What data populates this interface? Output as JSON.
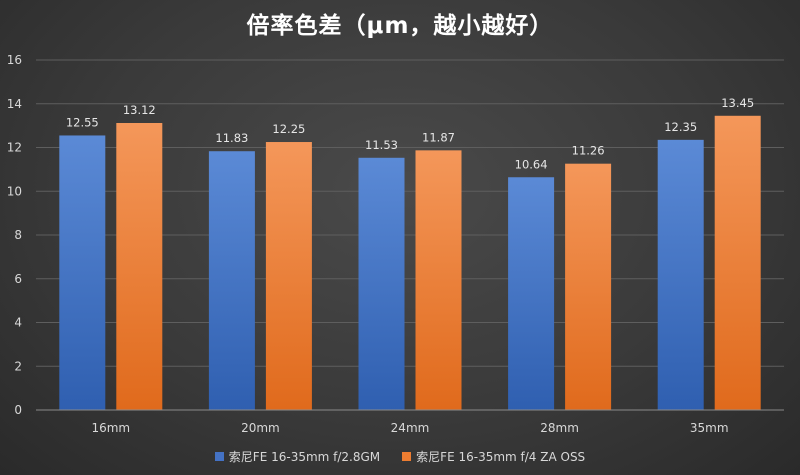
{
  "chart_data": {
    "type": "bar",
    "title": "倍率色差（μm，越小越好）",
    "categories": [
      "16mm",
      "20mm",
      "24mm",
      "28mm",
      "35mm"
    ],
    "ylim": [
      0,
      16
    ],
    "yticks": [
      "0",
      "2",
      "4",
      "6",
      "8",
      "10",
      "12",
      "14",
      "16"
    ],
    "grid": true,
    "legend_position": "bottom",
    "series": [
      {
        "name": "索尼FE 16-35mm f/2.8GM",
        "color": "#4472c4",
        "values": [
          12.55,
          11.83,
          11.53,
          10.64,
          12.35
        ],
        "labels": [
          "12.55",
          "11.83",
          "11.53",
          "10.64",
          "12.35"
        ]
      },
      {
        "name": "索尼FE 16-35mm f/4 ZA OSS",
        "color": "#ed7d31",
        "values": [
          13.12,
          12.25,
          11.87,
          11.26,
          13.45
        ],
        "labels": [
          "13.12",
          "12.25",
          "11.87",
          "11.26",
          "13.45"
        ]
      }
    ]
  }
}
